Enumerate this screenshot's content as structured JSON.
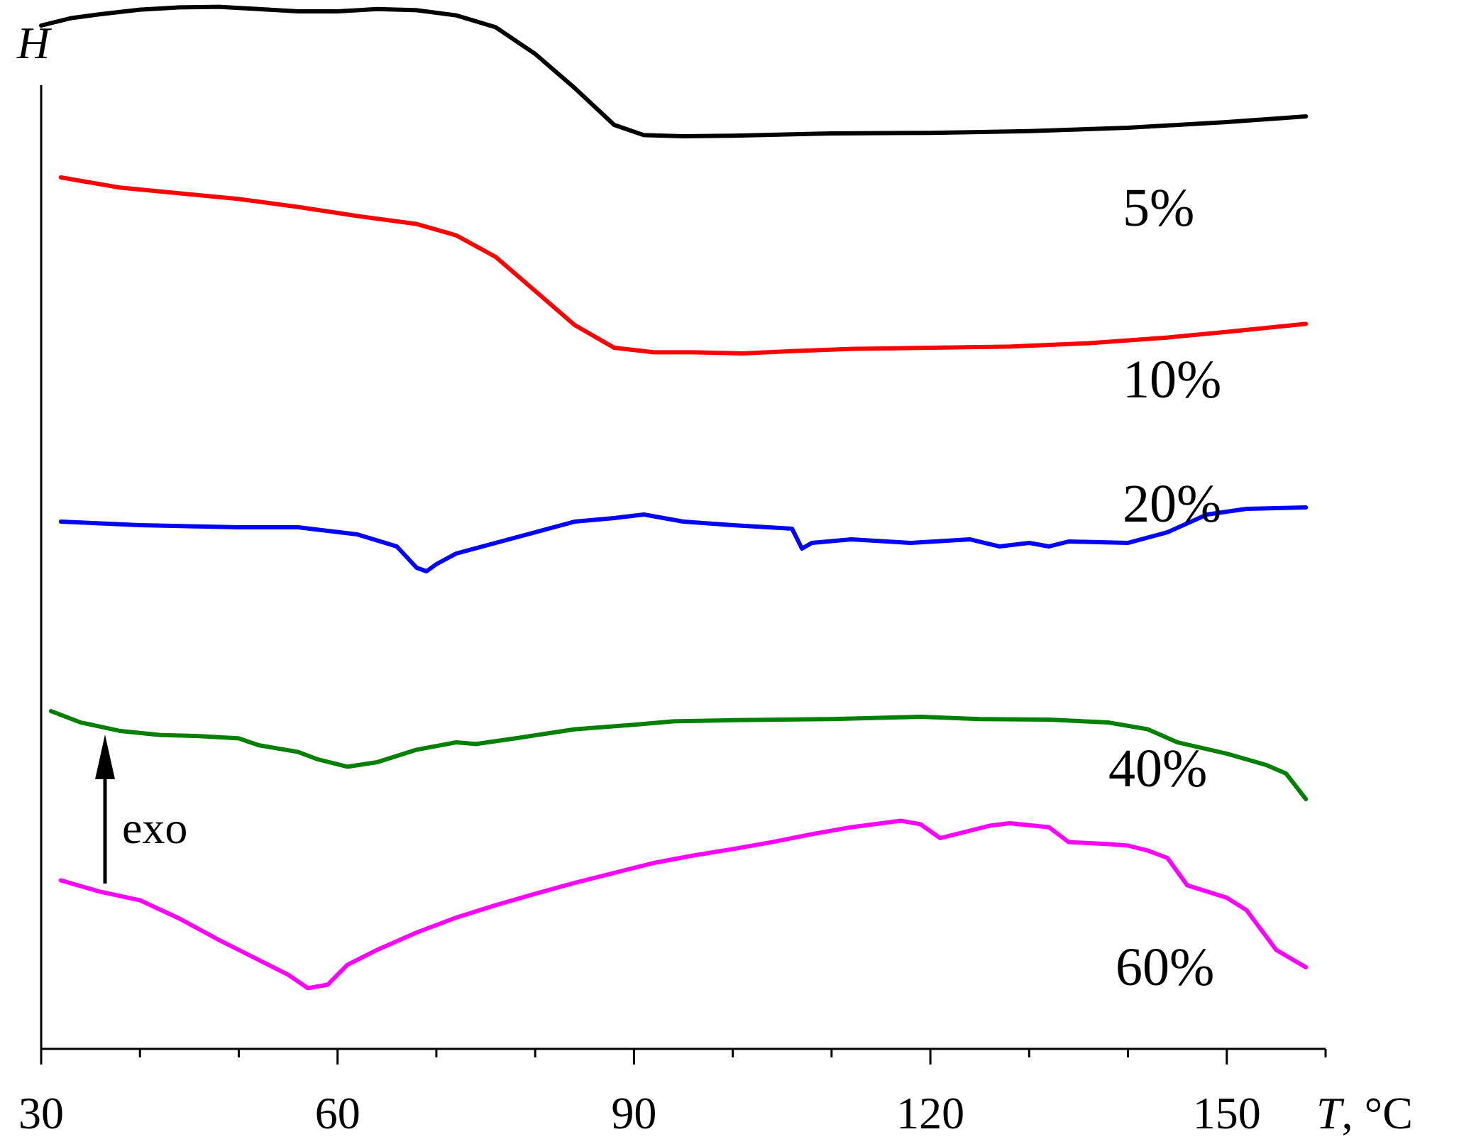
{
  "chart_data": {
    "type": "line",
    "xlabel": "T, °C",
    "ylabel": "H",
    "xlim": [
      30,
      160
    ],
    "x_ticks": [
      30,
      60,
      90,
      120,
      150
    ],
    "x_minor_step": 10,
    "grid": false,
    "legend": "labels placed at right end of each curve",
    "annotation": {
      "text": "exo",
      "arrow": "up"
    },
    "y_units": "arbitrary, curves vertically offset",
    "series": [
      {
        "name": "5%",
        "color": "#000000",
        "points": [
          [
            30,
            3.55
          ],
          [
            33,
            3.68
          ],
          [
            36,
            3.75
          ],
          [
            40,
            3.83
          ],
          [
            44,
            3.87
          ],
          [
            48,
            3.88
          ],
          [
            52,
            3.84
          ],
          [
            56,
            3.8
          ],
          [
            60,
            3.8
          ],
          [
            64,
            3.84
          ],
          [
            68,
            3.82
          ],
          [
            72,
            3.73
          ],
          [
            76,
            3.52
          ],
          [
            80,
            3.05
          ],
          [
            84,
            2.45
          ],
          [
            88,
            1.8
          ],
          [
            91,
            1.62
          ],
          [
            95,
            1.6
          ],
          [
            100,
            1.61
          ],
          [
            110,
            1.65
          ],
          [
            120,
            1.66
          ],
          [
            130,
            1.69
          ],
          [
            140,
            1.75
          ],
          [
            150,
            1.85
          ],
          [
            158,
            1.95
          ]
        ]
      },
      {
        "name": "10%",
        "color": "#ff0000",
        "points": [
          [
            32,
            4.0
          ],
          [
            38,
            3.82
          ],
          [
            44,
            3.72
          ],
          [
            50,
            3.62
          ],
          [
            56,
            3.48
          ],
          [
            62,
            3.32
          ],
          [
            68,
            3.18
          ],
          [
            72,
            2.98
          ],
          [
            76,
            2.6
          ],
          [
            80,
            2.0
          ],
          [
            84,
            1.4
          ],
          [
            88,
            1.0
          ],
          [
            92,
            0.92
          ],
          [
            96,
            0.92
          ],
          [
            101,
            0.9
          ],
          [
            106,
            0.94
          ],
          [
            112,
            0.98
          ],
          [
            120,
            1.0
          ],
          [
            128,
            1.02
          ],
          [
            136,
            1.08
          ],
          [
            144,
            1.18
          ],
          [
            150,
            1.28
          ],
          [
            158,
            1.42
          ]
        ]
      },
      {
        "name": "20%",
        "color": "#0000ff",
        "points": [
          [
            32,
            0.0
          ],
          [
            40,
            -0.05
          ],
          [
            50,
            -0.08
          ],
          [
            56,
            -0.08
          ],
          [
            62,
            -0.18
          ],
          [
            66,
            -0.35
          ],
          [
            68,
            -0.65
          ],
          [
            69,
            -0.7
          ],
          [
            70,
            -0.6
          ],
          [
            72,
            -0.45
          ],
          [
            76,
            -0.3
          ],
          [
            80,
            -0.15
          ],
          [
            84,
            0.0
          ],
          [
            88,
            0.05
          ],
          [
            91,
            0.1
          ],
          [
            95,
            0.0
          ],
          [
            100,
            -0.05
          ],
          [
            106,
            -0.1
          ],
          [
            107,
            -0.38
          ],
          [
            108,
            -0.3
          ],
          [
            112,
            -0.25
          ],
          [
            118,
            -0.3
          ],
          [
            124,
            -0.25
          ],
          [
            127,
            -0.35
          ],
          [
            130,
            -0.3
          ],
          [
            132,
            -0.35
          ],
          [
            134,
            -0.28
          ],
          [
            140,
            -0.3
          ],
          [
            144,
            -0.15
          ],
          [
            148,
            0.1
          ],
          [
            152,
            0.18
          ],
          [
            158,
            0.2
          ]
        ]
      },
      {
        "name": "40%",
        "color": "#008000",
        "points": [
          [
            31,
            2.1
          ],
          [
            34,
            1.9
          ],
          [
            38,
            1.75
          ],
          [
            42,
            1.68
          ],
          [
            46,
            1.66
          ],
          [
            50,
            1.62
          ],
          [
            52,
            1.5
          ],
          [
            56,
            1.38
          ],
          [
            58,
            1.25
          ],
          [
            61,
            1.12
          ],
          [
            64,
            1.2
          ],
          [
            68,
            1.42
          ],
          [
            72,
            1.55
          ],
          [
            74,
            1.52
          ],
          [
            78,
            1.62
          ],
          [
            84,
            1.78
          ],
          [
            90,
            1.86
          ],
          [
            94,
            1.92
          ],
          [
            100,
            1.94
          ],
          [
            110,
            1.96
          ],
          [
            119,
            2.0
          ],
          [
            125,
            1.96
          ],
          [
            132,
            1.95
          ],
          [
            138,
            1.9
          ],
          [
            142,
            1.78
          ],
          [
            145,
            1.55
          ],
          [
            150,
            1.35
          ],
          [
            154,
            1.15
          ],
          [
            156,
            1.0
          ],
          [
            158,
            0.55
          ]
        ]
      },
      {
        "name": "60%",
        "color": "#ff00ff",
        "points": [
          [
            32,
            0.85
          ],
          [
            36,
            0.62
          ],
          [
            40,
            0.45
          ],
          [
            44,
            0.08
          ],
          [
            48,
            -0.35
          ],
          [
            52,
            -0.75
          ],
          [
            55,
            -1.05
          ],
          [
            57,
            -1.32
          ],
          [
            59,
            -1.25
          ],
          [
            61,
            -0.85
          ],
          [
            64,
            -0.55
          ],
          [
            68,
            -0.2
          ],
          [
            72,
            0.1
          ],
          [
            76,
            0.35
          ],
          [
            80,
            0.58
          ],
          [
            84,
            0.8
          ],
          [
            88,
            1.0
          ],
          [
            92,
            1.2
          ],
          [
            96,
            1.35
          ],
          [
            100,
            1.48
          ],
          [
            104,
            1.62
          ],
          [
            108,
            1.78
          ],
          [
            112,
            1.92
          ],
          [
            117,
            2.05
          ],
          [
            119,
            1.98
          ],
          [
            121,
            1.7
          ],
          [
            124,
            1.85
          ],
          [
            126,
            1.95
          ],
          [
            128,
            2.0
          ],
          [
            132,
            1.92
          ],
          [
            134,
            1.62
          ],
          [
            138,
            1.58
          ],
          [
            140,
            1.55
          ],
          [
            142,
            1.45
          ],
          [
            144,
            1.3
          ],
          [
            146,
            0.75
          ],
          [
            150,
            0.5
          ],
          [
            152,
            0.25
          ],
          [
            155,
            -0.55
          ],
          [
            158,
            -0.9
          ]
        ]
      }
    ]
  }
}
